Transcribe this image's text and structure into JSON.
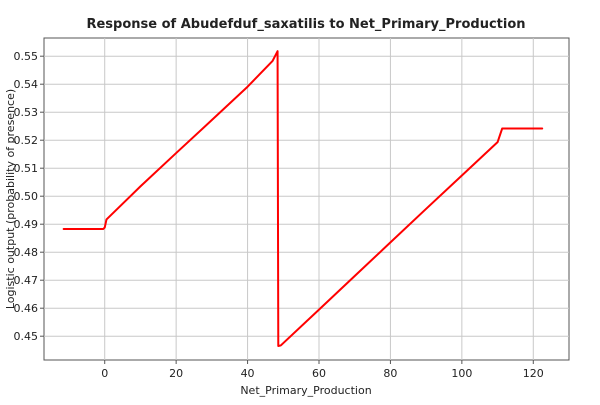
{
  "chart_data": {
    "type": "line",
    "title": "Response of Abudefduf_saxatilis to Net_Primary_Production",
    "xlabel": "Net_Primary_Production",
    "ylabel": "Logistic output (probability of presence)",
    "xlim": [
      -17,
      130
    ],
    "ylim": [
      0.4415,
      0.5565
    ],
    "xticks": [
      0,
      20,
      40,
      60,
      80,
      100,
      120
    ],
    "yticks": [
      0.45,
      0.46,
      0.47,
      0.48,
      0.49,
      0.5,
      0.51,
      0.52,
      0.53,
      0.54,
      0.55
    ],
    "ytick_labels": [
      "0.45",
      "0.46",
      "0.47",
      "0.48",
      "0.49",
      "0.50",
      "0.51",
      "0.52",
      "0.53",
      "0.54",
      "0.55"
    ],
    "grid": true,
    "series": [
      {
        "color": "#ff0000",
        "x": [
          -11.5,
          -0.4,
          0.0,
          0.5,
          10,
          20,
          30,
          40,
          47,
          48.4,
          48.6,
          49.3,
          60,
          70,
          80,
          90,
          100,
          110,
          111.3,
          122.5
        ],
        "y": [
          0.4883,
          0.4883,
          0.4888,
          0.4917,
          0.5035,
          0.5154,
          0.5272,
          0.5391,
          0.5483,
          0.5518,
          0.4465,
          0.4467,
          0.4595,
          0.4715,
          0.4835,
          0.4955,
          0.5074,
          0.5193,
          0.5242,
          0.5242
        ]
      }
    ]
  }
}
